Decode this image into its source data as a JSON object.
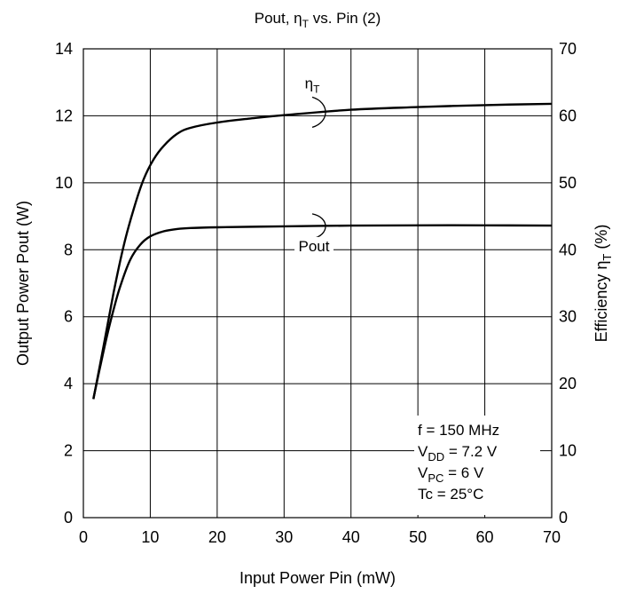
{
  "chart_data": {
    "type": "line",
    "title_parts": {
      "pre": "Pout, η",
      "sub": "T",
      "post": " vs. Pin (2)"
    },
    "xlabel": "Input Power  Pin  (mW)",
    "ylabel_left": "Output Power  Pout  (W)",
    "ylabel_right_parts": {
      "pre": "Efficiency  η",
      "sub": "T",
      "post": "  (%)"
    },
    "x_range": [
      0,
      70
    ],
    "y_left_range": [
      0,
      14
    ],
    "y_right_range": [
      0,
      70
    ],
    "x_ticks": [
      "0",
      "10",
      "20",
      "30",
      "40",
      "50",
      "60",
      "70"
    ],
    "y_left_ticks": [
      "0",
      "2",
      "4",
      "6",
      "8",
      "10",
      "12",
      "14"
    ],
    "y_right_ticks": [
      "0",
      "10",
      "20",
      "30",
      "40",
      "50",
      "60",
      "70"
    ],
    "grid": true,
    "series": [
      {
        "name": "Pout",
        "axis": "left",
        "x": [
          1.5,
          2.5,
          3.5,
          4.5,
          5.5,
          7,
          8.5,
          10,
          12,
          14,
          16,
          20,
          30,
          40,
          50,
          60,
          70
        ],
        "y": [
          3.55,
          4.5,
          5.4,
          6.2,
          6.9,
          7.7,
          8.15,
          8.4,
          8.55,
          8.62,
          8.65,
          8.67,
          8.7,
          8.72,
          8.73,
          8.73,
          8.72
        ]
      },
      {
        "name": "ηT",
        "axis": "right",
        "x": [
          1.5,
          3,
          4.5,
          6,
          7.5,
          9,
          10.5,
          12,
          14,
          16,
          20,
          25,
          30,
          40,
          50,
          60,
          70
        ],
        "y": [
          17.7,
          25.5,
          33.5,
          40.5,
          46,
          50.5,
          53.5,
          55.5,
          57.3,
          58.2,
          59.0,
          59.6,
          60.1,
          60.9,
          61.3,
          61.6,
          61.8
        ]
      }
    ],
    "labels": {
      "eta_pre": "η",
      "eta_sub": "T",
      "pout": "Pout"
    },
    "conditions": [
      {
        "pre": "f = 150 MHz",
        "sub": "",
        "post": ""
      },
      {
        "pre": "V",
        "sub": "DD",
        "post": " = 7.2 V"
      },
      {
        "pre": "V",
        "sub": "PC",
        "post": " = 6 V"
      },
      {
        "pre": "Tc = 25°C",
        "sub": "",
        "post": ""
      }
    ]
  }
}
